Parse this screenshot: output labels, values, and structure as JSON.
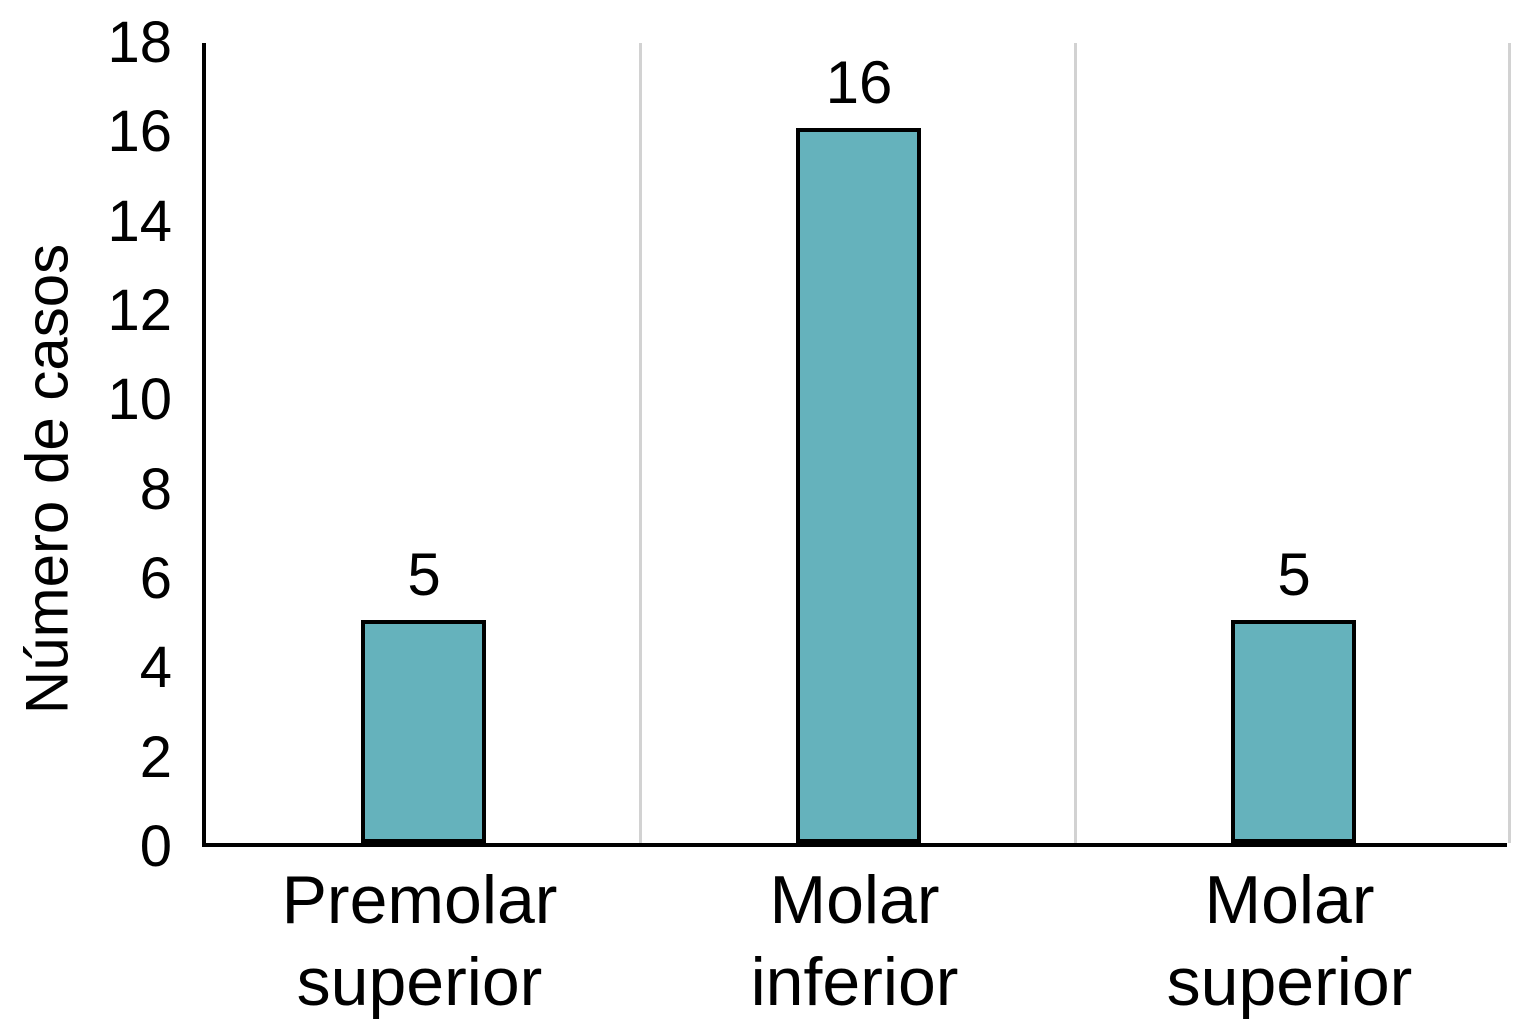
{
  "chart_data": {
    "type": "bar",
    "title": "",
    "xlabel": "",
    "ylabel": "Número de casos",
    "categories": [
      "Premolar superior",
      "Molar inferior",
      "Molar superior"
    ],
    "values": [
      5,
      16,
      5
    ],
    "data_labels": [
      "5",
      "16",
      "5"
    ],
    "ylim": [
      0,
      18
    ],
    "yticks": [
      0,
      2,
      4,
      6,
      8,
      10,
      12,
      14,
      16,
      18
    ],
    "legend_position": "none",
    "grid": "vertical category separators only",
    "colors": {
      "bar_fill": "#65b2bc",
      "bar_border": "#000000",
      "axis": "#000000",
      "gridline": "#d2d2d2",
      "text": "#000000",
      "background": "#ffffff"
    }
  }
}
